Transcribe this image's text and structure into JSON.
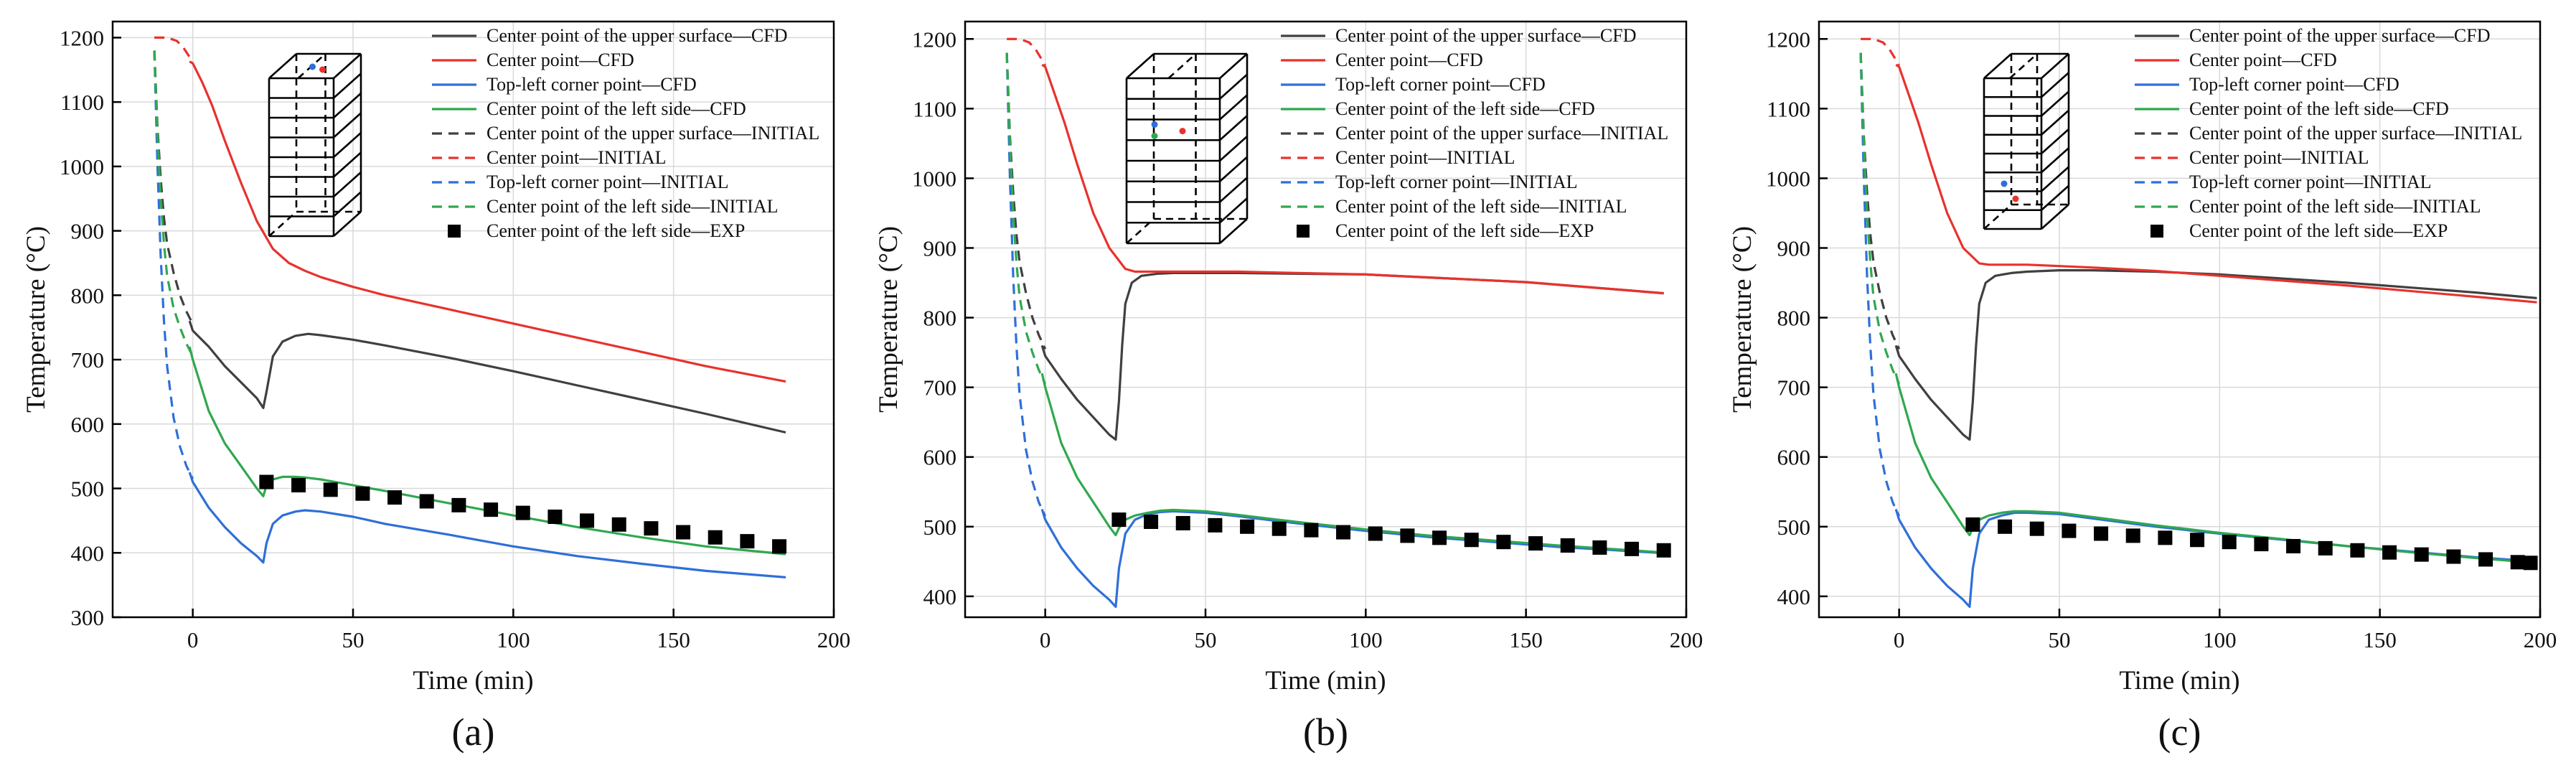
{
  "figure": {
    "panel_labels": [
      "(a)",
      "(b)",
      "(c)"
    ],
    "xlabel": "Time (min)",
    "ylabel": "Temperature (°C)"
  },
  "legend_labels": [
    "Center point of the upper surface—CFD",
    "Center point—CFD",
    "Top-left corner point—CFD",
    "Center point of the left side—CFD",
    "Center point of the upper surface—INITIAL",
    "Center point—INITIAL",
    "Top-left corner point—INITIAL",
    "Center point of the left side—INITIAL",
    "Center point of the left side—EXP"
  ],
  "series_colors": [
    "#404040",
    "#e8322d",
    "#2f6fd8",
    "#2fa84f",
    "#404040",
    "#e8322d",
    "#2f6fd8",
    "#2fa84f",
    "#000000"
  ],
  "chart_data": [
    {
      "type": "line",
      "panel": "(a)",
      "xlabel": "Time (min)",
      "ylabel": "Temperature (°C)",
      "xlim": [
        -25,
        200
      ],
      "ylim": [
        300,
        1225
      ],
      "xticks": [
        0,
        50,
        100,
        150,
        200
      ],
      "yticks": [
        300,
        400,
        500,
        600,
        700,
        800,
        900,
        1000,
        1100,
        1200
      ],
      "grid": true,
      "series": [
        {
          "name": "Center point of the upper surface—CFD",
          "style": "solid",
          "x": [
            -1,
            0,
            5,
            10,
            15,
            20,
            22,
            23,
            25,
            28,
            32,
            36,
            40,
            50,
            60,
            80,
            100,
            120,
            140,
            160,
            185
          ],
          "y": [
            760,
            745,
            720,
            690,
            665,
            640,
            625,
            650,
            705,
            728,
            737,
            740,
            738,
            731,
            722,
            703,
            682,
            660,
            638,
            616,
            587
          ]
        },
        {
          "name": "Center point—CFD",
          "style": "solid",
          "x": [
            -1,
            0,
            3,
            6,
            10,
            15,
            20,
            25,
            30,
            35,
            40,
            50,
            60,
            80,
            100,
            120,
            140,
            160,
            185
          ],
          "y": [
            1163,
            1160,
            1130,
            1095,
            1040,
            975,
            915,
            872,
            850,
            838,
            828,
            813,
            800,
            778,
            756,
            734,
            712,
            690,
            666
          ]
        },
        {
          "name": "Top-left corner point—CFD",
          "style": "solid",
          "x": [
            -1,
            0,
            5,
            10,
            15,
            20,
            22,
            23,
            25,
            28,
            32,
            35,
            40,
            50,
            60,
            80,
            100,
            120,
            140,
            160,
            185
          ],
          "y": [
            525,
            510,
            470,
            440,
            415,
            395,
            385,
            415,
            445,
            458,
            464,
            466,
            464,
            456,
            445,
            428,
            410,
            395,
            383,
            372,
            362
          ]
        },
        {
          "name": "Center point of the left side—CFD",
          "style": "solid",
          "x": [
            -1,
            0,
            5,
            10,
            15,
            20,
            22,
            23,
            25,
            28,
            32,
            35,
            40,
            50,
            60,
            80,
            100,
            120,
            140,
            160,
            185
          ],
          "y": [
            720,
            700,
            620,
            570,
            535,
            500,
            488,
            505,
            514,
            518,
            518,
            517,
            514,
            505,
            496,
            477,
            458,
            440,
            424,
            410,
            398
          ]
        },
        {
          "name": "Center point of the upper surface—INITIAL",
          "style": "dashed",
          "x": [
            -12,
            -11,
            -10,
            -9,
            -8,
            -6,
            -4,
            -2,
            0
          ],
          "y": [
            1180,
            1060,
            980,
            920,
            880,
            835,
            800,
            775,
            755
          ]
        },
        {
          "name": "Center point—INITIAL",
          "style": "dashed",
          "x": [
            -12,
            -8,
            -5,
            -3,
            -1,
            0
          ],
          "y": [
            1200,
            1200,
            1195,
            1185,
            1170,
            1162
          ]
        },
        {
          "name": "Top-left corner point—INITIAL",
          "style": "dashed",
          "x": [
            -12,
            -11,
            -10,
            -9,
            -8,
            -6,
            -4,
            -2,
            0
          ],
          "y": [
            1180,
            1000,
            860,
            760,
            690,
            610,
            565,
            535,
            515
          ]
        },
        {
          "name": "Center point of the left side—INITIAL",
          "style": "dashed",
          "x": [
            -12,
            -11,
            -10,
            -9,
            -8,
            -6,
            -4,
            -2,
            0
          ],
          "y": [
            1180,
            1050,
            950,
            880,
            830,
            780,
            750,
            725,
            705
          ]
        },
        {
          "name": "Center point of the left side—EXP",
          "style": "markers",
          "x": [
            23,
            33,
            43,
            53,
            63,
            73,
            83,
            93,
            103,
            113,
            123,
            133,
            143,
            153,
            163,
            173,
            183
          ],
          "y": [
            510,
            505,
            498,
            492,
            486,
            480,
            474,
            467,
            462,
            456,
            450,
            444,
            438,
            432,
            424,
            418,
            410
          ]
        }
      ]
    },
    {
      "type": "line",
      "panel": "(b)",
      "xlabel": "Time (min)",
      "ylabel": "Temperature (°C)",
      "xlim": [
        -25,
        200
      ],
      "ylim": [
        370,
        1225
      ],
      "xticks": [
        0,
        50,
        100,
        150,
        200
      ],
      "yticks": [
        400,
        500,
        600,
        700,
        800,
        900,
        1000,
        1100,
        1200
      ],
      "grid": true,
      "series": [
        {
          "name": "Center point of the upper surface—CFD",
          "style": "solid",
          "x": [
            -1,
            0,
            5,
            10,
            15,
            20,
            22,
            23,
            24,
            25,
            27,
            30,
            35,
            40,
            60,
            100,
            150,
            193
          ],
          "y": [
            760,
            745,
            712,
            682,
            657,
            632,
            625,
            680,
            760,
            820,
            850,
            860,
            863,
            864,
            864,
            862,
            851,
            835
          ]
        },
        {
          "name": "Center point—CFD",
          "style": "solid",
          "x": [
            -1,
            0,
            3,
            6,
            10,
            15,
            20,
            25,
            28,
            30,
            35,
            40,
            60,
            100,
            150,
            193
          ],
          "y": [
            1163,
            1160,
            1120,
            1080,
            1020,
            950,
            900,
            870,
            866,
            866,
            866,
            866,
            866,
            862,
            851,
            835
          ]
        },
        {
          "name": "Top-left corner point—CFD",
          "style": "solid",
          "x": [
            -1,
            0,
            5,
            10,
            15,
            20,
            22,
            23,
            25,
            28,
            32,
            36,
            40,
            50,
            60,
            80,
            100,
            120,
            140,
            160,
            193
          ],
          "y": [
            525,
            510,
            470,
            440,
            415,
            395,
            385,
            440,
            490,
            510,
            518,
            521,
            522,
            520,
            515,
            504,
            494,
            485,
            478,
            471,
            462
          ]
        },
        {
          "name": "Center point of the left side—CFD",
          "style": "solid",
          "x": [
            -1,
            0,
            5,
            10,
            15,
            20,
            22,
            23,
            25,
            28,
            32,
            36,
            40,
            50,
            60,
            80,
            100,
            120,
            140,
            160,
            193
          ],
          "y": [
            720,
            700,
            620,
            570,
            535,
            500,
            488,
            498,
            510,
            516,
            520,
            523,
            524,
            522,
            517,
            506,
            496,
            487,
            480,
            473,
            463
          ]
        },
        {
          "name": "Center point of the upper surface—INITIAL",
          "style": "dashed",
          "x": [
            -12,
            -11,
            -10,
            -9,
            -8,
            -6,
            -4,
            -2,
            0
          ],
          "y": [
            1180,
            1060,
            980,
            920,
            880,
            835,
            800,
            775,
            755
          ]
        },
        {
          "name": "Center point—INITIAL",
          "style": "dashed",
          "x": [
            -12,
            -8,
            -5,
            -3,
            -1,
            0
          ],
          "y": [
            1200,
            1200,
            1195,
            1185,
            1170,
            1162
          ]
        },
        {
          "name": "Top-left corner point—INITIAL",
          "style": "dashed",
          "x": [
            -12,
            -11,
            -10,
            -9,
            -8,
            -6,
            -4,
            -2,
            0
          ],
          "y": [
            1180,
            1000,
            860,
            760,
            690,
            610,
            565,
            535,
            515
          ]
        },
        {
          "name": "Center point of the left side—INITIAL",
          "style": "dashed",
          "x": [
            -12,
            -11,
            -10,
            -9,
            -8,
            -6,
            -4,
            -2,
            0
          ],
          "y": [
            1180,
            1050,
            950,
            880,
            830,
            780,
            750,
            725,
            705
          ]
        },
        {
          "name": "Center point of the left side—EXP",
          "style": "markers",
          "x": [
            23,
            33,
            43,
            53,
            63,
            73,
            83,
            93,
            103,
            113,
            123,
            133,
            143,
            153,
            163,
            173,
            183,
            193
          ],
          "y": [
            510,
            507,
            505,
            502,
            500,
            497,
            495,
            492,
            490,
            487,
            484,
            481,
            478,
            476,
            473,
            470,
            468,
            466
          ]
        }
      ]
    },
    {
      "type": "line",
      "panel": "(c)",
      "xlabel": "Time (min)",
      "ylabel": "Temperature (°C)",
      "xlim": [
        -25,
        200
      ],
      "ylim": [
        370,
        1225
      ],
      "xticks": [
        0,
        50,
        100,
        150,
        200
      ],
      "yticks": [
        400,
        500,
        600,
        700,
        800,
        900,
        1000,
        1100,
        1200
      ],
      "grid": true,
      "series": [
        {
          "name": "Center point of the upper surface—CFD",
          "style": "solid",
          "x": [
            -1,
            0,
            5,
            10,
            15,
            20,
            22,
            23,
            24,
            25,
            27,
            30,
            35,
            40,
            50,
            60,
            80,
            100,
            120,
            140,
            160,
            180,
            199
          ],
          "y": [
            760,
            745,
            712,
            682,
            657,
            632,
            625,
            680,
            760,
            820,
            850,
            860,
            864,
            866,
            868,
            868,
            866,
            862,
            856,
            850,
            843,
            836,
            828
          ]
        },
        {
          "name": "Center point—CFD",
          "style": "solid",
          "x": [
            -1,
            0,
            3,
            6,
            10,
            15,
            20,
            25,
            28,
            30,
            35,
            40,
            50,
            60,
            80,
            100,
            120,
            140,
            160,
            180,
            199
          ],
          "y": [
            1163,
            1160,
            1120,
            1080,
            1020,
            950,
            900,
            878,
            876,
            876,
            876,
            876,
            874,
            872,
            867,
            860,
            853,
            846,
            838,
            830,
            822
          ]
        },
        {
          "name": "Top-left corner point—CFD",
          "style": "solid",
          "x": [
            -1,
            0,
            5,
            10,
            15,
            20,
            22,
            23,
            25,
            28,
            32,
            36,
            40,
            50,
            60,
            80,
            100,
            120,
            140,
            160,
            180,
            199
          ],
          "y": [
            525,
            510,
            470,
            440,
            415,
            395,
            385,
            440,
            490,
            510,
            516,
            520,
            520,
            518,
            512,
            500,
            490,
            481,
            472,
            464,
            456,
            450
          ]
        },
        {
          "name": "Center point of the left side—CFD",
          "style": "solid",
          "x": [
            -1,
            0,
            5,
            10,
            15,
            20,
            22,
            23,
            25,
            28,
            32,
            36,
            40,
            50,
            60,
            80,
            100,
            120,
            140,
            160,
            180,
            199
          ],
          "y": [
            720,
            700,
            620,
            570,
            535,
            500,
            488,
            498,
            510,
            516,
            520,
            522,
            522,
            520,
            514,
            502,
            491,
            482,
            472,
            463,
            455,
            448
          ]
        },
        {
          "name": "Center point of the upper surface—INITIAL",
          "style": "dashed",
          "x": [
            -12,
            -11,
            -10,
            -9,
            -8,
            -6,
            -4,
            -2,
            0
          ],
          "y": [
            1180,
            1060,
            980,
            920,
            880,
            835,
            800,
            775,
            755
          ]
        },
        {
          "name": "Center point—INITIAL",
          "style": "dashed",
          "x": [
            -12,
            -8,
            -5,
            -3,
            -1,
            0
          ],
          "y": [
            1200,
            1200,
            1195,
            1185,
            1170,
            1162
          ]
        },
        {
          "name": "Top-left corner point—INITIAL",
          "style": "dashed",
          "x": [
            -12,
            -11,
            -10,
            -9,
            -8,
            -6,
            -4,
            -2,
            0
          ],
          "y": [
            1180,
            1000,
            860,
            760,
            690,
            610,
            565,
            535,
            515
          ]
        },
        {
          "name": "Center point of the left side—INITIAL",
          "style": "dashed",
          "x": [
            -12,
            -11,
            -10,
            -9,
            -8,
            -6,
            -4,
            -2,
            0
          ],
          "y": [
            1180,
            1050,
            950,
            880,
            830,
            780,
            750,
            725,
            705
          ]
        },
        {
          "name": "Center point of the left side—EXP",
          "style": "markers",
          "x": [
            23,
            33,
            43,
            53,
            63,
            73,
            83,
            93,
            103,
            113,
            123,
            133,
            143,
            153,
            163,
            173,
            183,
            193,
            197
          ],
          "y": [
            503,
            500,
            497,
            494,
            490,
            487,
            484,
            481,
            478,
            475,
            472,
            469,
            466,
            463,
            460,
            457,
            453,
            449,
            448
          ]
        }
      ]
    }
  ]
}
